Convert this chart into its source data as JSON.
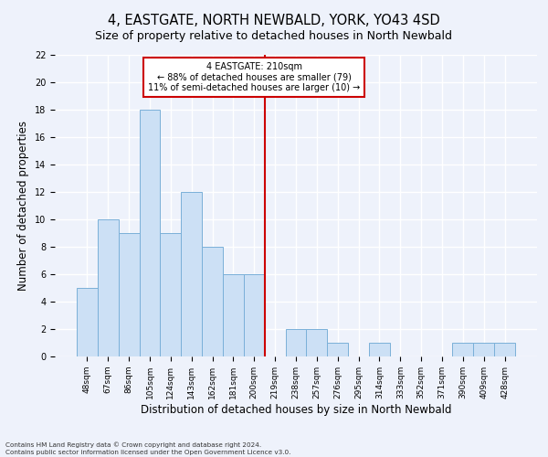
{
  "title": "4, EASTGATE, NORTH NEWBALD, YORK, YO43 4SD",
  "subtitle": "Size of property relative to detached houses in North Newbald",
  "xlabel": "Distribution of detached houses by size in North Newbald",
  "ylabel": "Number of detached properties",
  "bin_labels": [
    "48sqm",
    "67sqm",
    "86sqm",
    "105sqm",
    "124sqm",
    "143sqm",
    "162sqm",
    "181sqm",
    "200sqm",
    "219sqm",
    "238sqm",
    "257sqm",
    "276sqm",
    "295sqm",
    "314sqm",
    "333sqm",
    "352sqm",
    "371sqm",
    "390sqm",
    "409sqm",
    "428sqm"
  ],
  "bin_values": [
    5,
    10,
    9,
    18,
    9,
    12,
    8,
    6,
    6,
    0,
    2,
    2,
    1,
    0,
    1,
    0,
    0,
    0,
    1,
    1,
    1
  ],
  "bar_color": "#cce0f5",
  "bar_edge_color": "#7ab0d8",
  "ylim": [
    0,
    22
  ],
  "yticks": [
    0,
    2,
    4,
    6,
    8,
    10,
    12,
    14,
    16,
    18,
    20,
    22
  ],
  "vline_x": 8.5,
  "vline_color": "#cc0000",
  "annotation_text": "4 EASTGATE: 210sqm\n← 88% of detached houses are smaller (79)\n11% of semi-detached houses are larger (10) →",
  "annotation_box_color": "#cc0000",
  "footer_line1": "Contains HM Land Registry data © Crown copyright and database right 2024.",
  "footer_line2": "Contains public sector information licensed under the Open Government Licence v3.0.",
  "background_color": "#eef2fb",
  "grid_color": "#ffffff",
  "title_fontsize": 10.5,
  "subtitle_fontsize": 9,
  "tick_fontsize": 6.5,
  "ylabel_fontsize": 8.5,
  "xlabel_fontsize": 8.5
}
